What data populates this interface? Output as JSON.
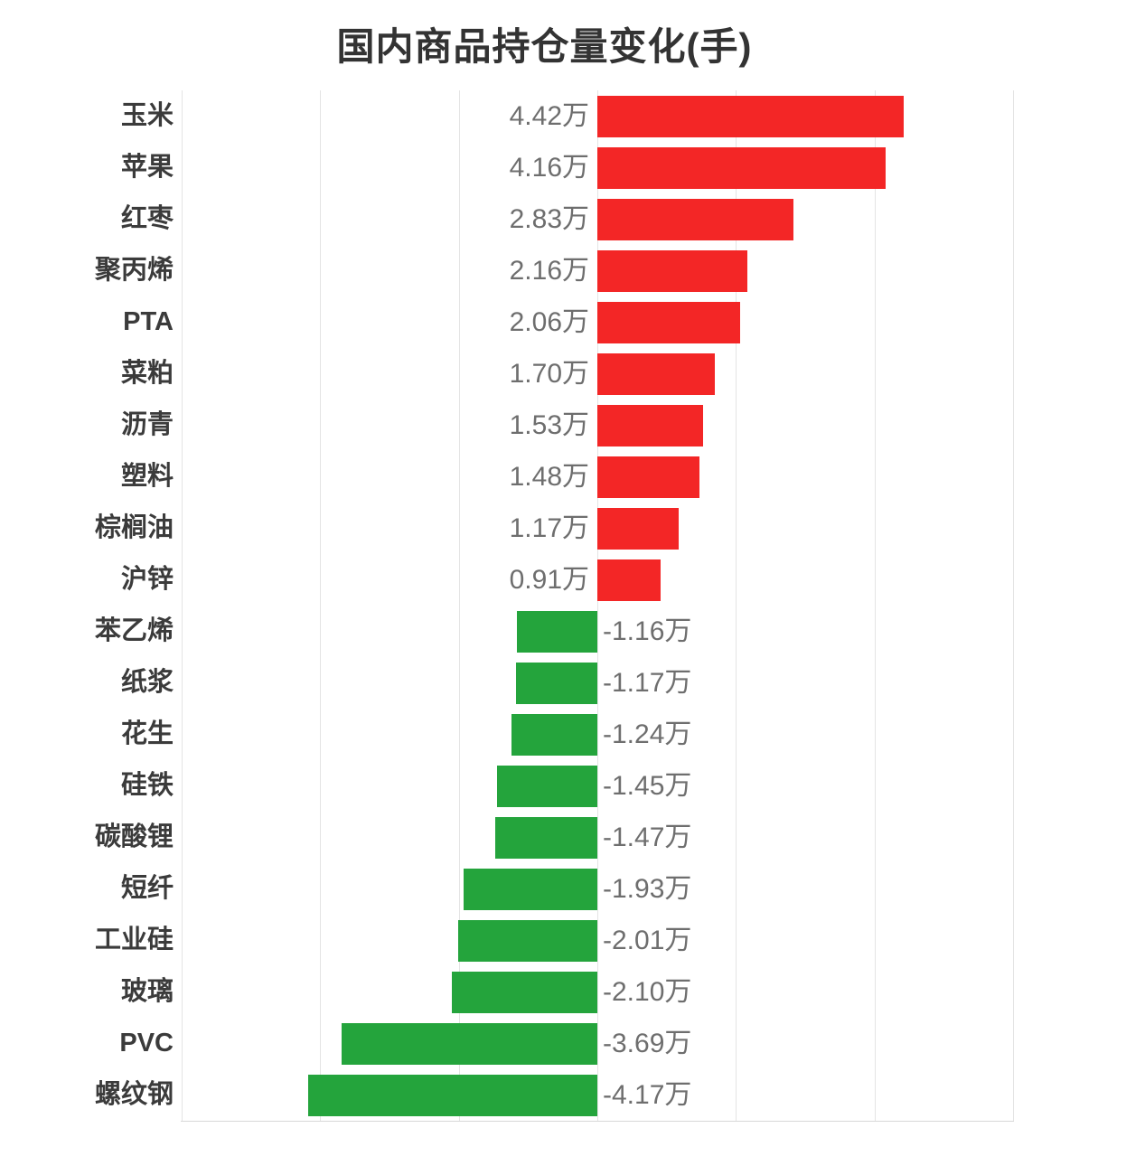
{
  "chart_data": {
    "type": "bar",
    "orientation": "horizontal",
    "title": "国内商品持仓量变化(手)",
    "value_unit": "万手",
    "categories": [
      "玉米",
      "苹果",
      "红枣",
      "聚丙烯",
      "PTA",
      "菜粕",
      "沥青",
      "塑料",
      "棕榈油",
      "沪锌",
      "苯乙烯",
      "纸浆",
      "花生",
      "硅铁",
      "碳酸锂",
      "短纤",
      "工业硅",
      "玻璃",
      "PVC",
      "螺纹钢"
    ],
    "values_wan": [
      4.42,
      4.16,
      2.83,
      2.16,
      2.06,
      1.7,
      1.53,
      1.48,
      1.17,
      0.91,
      -1.16,
      -1.17,
      -1.24,
      -1.45,
      -1.47,
      -1.93,
      -2.01,
      -2.1,
      -3.69,
      -4.17
    ],
    "value_labels": [
      "4.42万",
      "4.16万",
      "2.83万",
      "2.16万",
      "2.06万",
      "1.70万",
      "1.53万",
      "1.48万",
      "1.17万",
      "0.91万",
      "-1.16万",
      "-1.17万",
      "-1.24万",
      "-1.45万",
      "-1.47万",
      "-1.93万",
      "-2.01万",
      "-2.10万",
      "-3.69万",
      "-4.17万"
    ],
    "xlim_wan": [
      -6,
      6
    ],
    "grid_step_wan": 2,
    "grid": true,
    "x_axis_tick_labels_visible": false,
    "legend": false,
    "colors": {
      "positive_bar": "#f32626",
      "negative_bar": "#24a43c",
      "title_text": "#333333",
      "category_text": "#3b3b3b",
      "value_text": "#6e6e6e",
      "gridline": "#e4e4e4",
      "axis_line": "#d8d8d8"
    }
  }
}
